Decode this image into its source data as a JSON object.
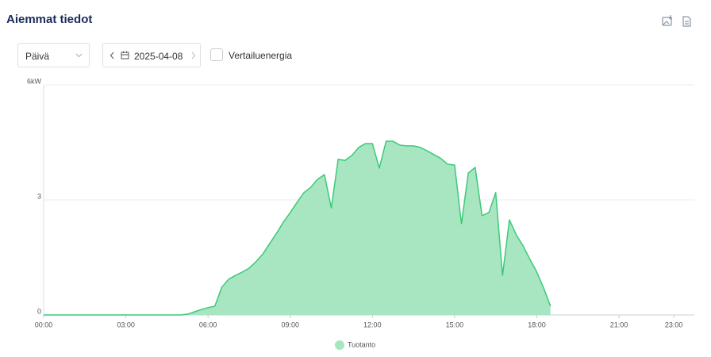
{
  "header": {
    "title": "Aiemmat tiedot"
  },
  "controls": {
    "period": "Päivä",
    "date": "2025-04-08",
    "compare_label": "Vertailuenergia"
  },
  "chart_data": {
    "type": "area",
    "x": [
      0,
      5,
      5.25,
      5.5,
      5.75,
      6,
      6.25,
      6.5,
      6.75,
      7,
      7.25,
      7.5,
      7.75,
      8,
      8.25,
      8.5,
      8.75,
      9,
      9.25,
      9.5,
      9.75,
      10,
      10.25,
      10.5,
      10.75,
      11,
      11.25,
      11.5,
      11.75,
      12,
      12.25,
      12.5,
      12.75,
      13,
      13.25,
      13.5,
      13.75,
      14,
      14.25,
      14.5,
      14.75,
      15,
      15.25,
      15.5,
      15.75,
      16,
      16.25,
      16.5,
      16.75,
      17,
      17.25,
      17.5,
      17.75,
      18,
      18.25,
      18.5
    ],
    "series": [
      {
        "name": "Tuotanto",
        "color": "#3cc97a",
        "fill": "#a8e6c1",
        "values": [
          0,
          0,
          0.02,
          0.08,
          0.14,
          0.19,
          0.23,
          0.72,
          0.93,
          1.03,
          1.12,
          1.22,
          1.39,
          1.59,
          1.86,
          2.13,
          2.42,
          2.67,
          2.94,
          3.19,
          3.33,
          3.54,
          3.66,
          2.79,
          4.06,
          4.03,
          4.16,
          4.37,
          4.47,
          4.47,
          3.83,
          4.53,
          4.53,
          4.43,
          4.41,
          4.41,
          4.37,
          4.28,
          4.18,
          4.08,
          3.93,
          3.91,
          2.38,
          3.7,
          3.85,
          2.59,
          2.67,
          3.19,
          1.03,
          2.48,
          2.09,
          1.8,
          1.45,
          1.12,
          0.7,
          0.23
        ]
      }
    ],
    "xlim": [
      0,
      23.75
    ],
    "xticks": [
      {
        "value": 0,
        "label": "00:00"
      },
      {
        "value": 3,
        "label": "03:00"
      },
      {
        "value": 6,
        "label": "06:00"
      },
      {
        "value": 9,
        "label": "09:00"
      },
      {
        "value": 12,
        "label": "12:00"
      },
      {
        "value": 15,
        "label": "15:00"
      },
      {
        "value": 18,
        "label": "18:00"
      },
      {
        "value": 21,
        "label": "21:00"
      },
      {
        "value": 23,
        "label": "23:00"
      }
    ],
    "ylim": [
      0,
      6
    ],
    "yticks": [
      0,
      3,
      {
        "value": 6,
        "label": "6kW"
      }
    ],
    "grid": true
  }
}
